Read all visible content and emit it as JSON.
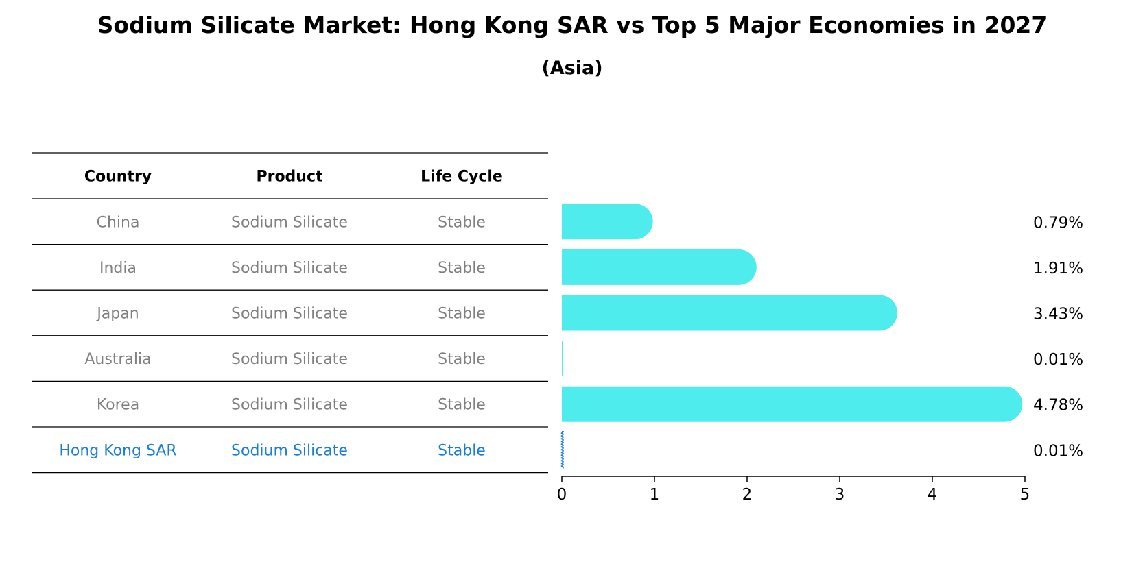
{
  "title": "Sodium Silicate Market: Hong Kong SAR vs Top 5 Major Economies in 2027",
  "subtitle": "(Asia)",
  "table": {
    "headers": [
      "Country",
      "Product",
      "Life Cycle"
    ],
    "rows": [
      {
        "country": "China",
        "product": "Sodium Silicate",
        "life_cycle": "Stable",
        "highlight": false
      },
      {
        "country": "India",
        "product": "Sodium Silicate",
        "life_cycle": "Stable",
        "highlight": false
      },
      {
        "country": "Japan",
        "product": "Sodium Silicate",
        "life_cycle": "Stable",
        "highlight": false
      },
      {
        "country": "Australia",
        "product": "Sodium Silicate",
        "life_cycle": "Stable",
        "highlight": false
      },
      {
        "country": "Korea",
        "product": "Sodium Silicate",
        "life_cycle": "Stable",
        "highlight": false
      },
      {
        "country": "Hong Kong SAR",
        "product": "Sodium Silicate",
        "life_cycle": "Stable",
        "highlight": true
      }
    ]
  },
  "chart_data": {
    "type": "bar",
    "orientation": "horizontal",
    "title": "Sodium Silicate Market: Hong Kong SAR vs Top 5 Major Economies in 2027",
    "subtitle": "(Asia)",
    "categories": [
      "China",
      "India",
      "Japan",
      "Australia",
      "Korea",
      "Hong Kong SAR"
    ],
    "values": [
      0.79,
      1.91,
      3.43,
      0.01,
      4.78,
      0.01
    ],
    "value_labels": [
      "0.79%",
      "1.91%",
      "3.43%",
      "0.01%",
      "4.78%",
      "0.01%"
    ],
    "highlight": "Hong Kong SAR",
    "xlim": [
      0,
      5
    ],
    "xticks": [
      0,
      1,
      2,
      3,
      4,
      5
    ],
    "xtick_labels": [
      "0",
      "1",
      "2",
      "3",
      "4",
      "5"
    ],
    "xlabel": "",
    "ylabel": "",
    "grid": false,
    "legend": "none"
  },
  "colors": {
    "bar": "#4eecec",
    "highlight_bar": "#1f7fd4",
    "highlight_text": "#1a7fd4",
    "muted_text": "#808080",
    "title_text": "#000000",
    "rule": "#000000"
  }
}
